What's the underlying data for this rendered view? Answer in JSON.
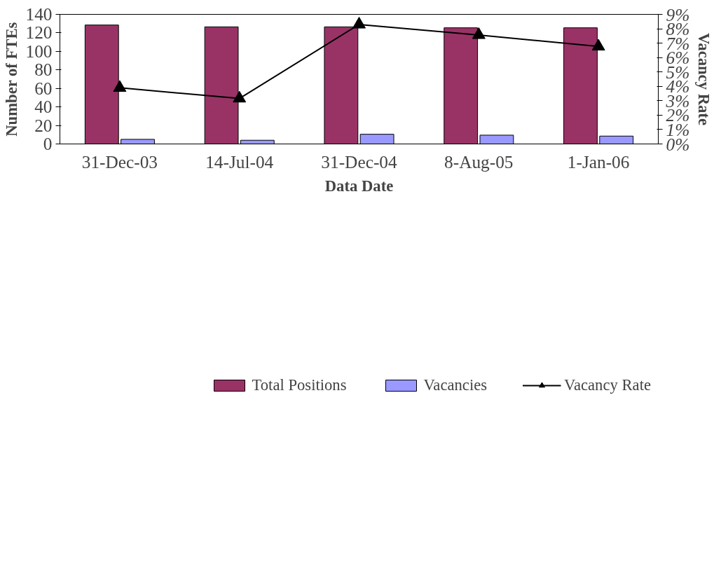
{
  "chart_data": {
    "type": "bar",
    "xlabel": "Data Date",
    "ylabel": "Number of FTEs",
    "y2label": "Vacancy Rate",
    "categories": [
      "31-Dec-03",
      "14-Jul-04",
      "31-Dec-04",
      "8-Aug-05",
      "1-Jan-06"
    ],
    "series": [
      {
        "name": "Total Positions",
        "color": "#993366",
        "values": [
          128.5,
          126.5,
          126.5,
          125.5,
          125.5
        ]
      },
      {
        "name": "Vacancies",
        "color": "#9999ff",
        "values": [
          5,
          4,
          10.5,
          9.5,
          8.5
        ]
      },
      {
        "name": "Vacancy Rate",
        "type": "line",
        "axis": "y2",
        "color": "#000000",
        "marker": "triangle",
        "values": [
          3.9,
          3.16,
          8.3,
          7.57,
          6.77
        ]
      }
    ],
    "ylim": [
      0,
      140
    ],
    "yticks": [
      0,
      20,
      40,
      60,
      80,
      100,
      120,
      140
    ],
    "y2lim": [
      0,
      9
    ],
    "y2ticks": [
      {
        "value": 0,
        "label": "0%"
      },
      {
        "value": 1,
        "label": "1%"
      },
      {
        "value": 2,
        "label": "2%"
      },
      {
        "value": 3,
        "label": "3%"
      },
      {
        "value": 4,
        "label": "4%"
      },
      {
        "value": 5,
        "label": "5%"
      },
      {
        "value": 6,
        "label": "6%"
      },
      {
        "value": 7,
        "label": "7%"
      },
      {
        "value": 8,
        "label": "8%"
      },
      {
        "value": 9,
        "label": "9%"
      }
    ],
    "grid": false,
    "legend": "bottom"
  }
}
